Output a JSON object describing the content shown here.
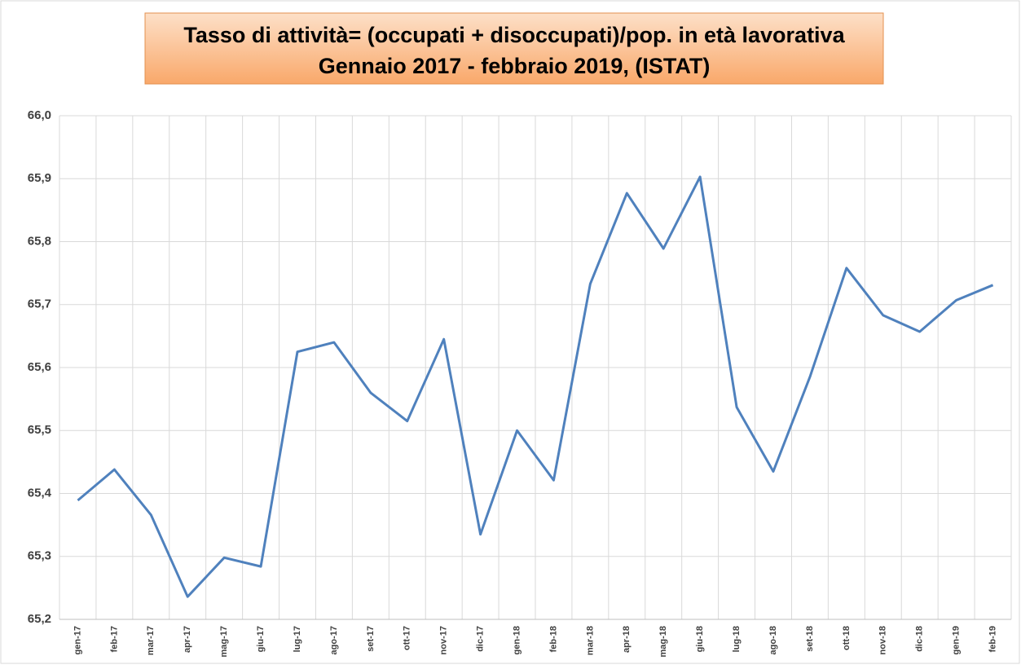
{
  "chart_data": {
    "type": "line",
    "title": [
      "Tasso di attività= (occupati + disoccupati)/pop. in età lavorativa",
      "Gennaio 2017 - febbraio 2019, (ISTAT)"
    ],
    "categories": [
      "gen-17",
      "feb-17",
      "mar-17",
      "apr-17",
      "mag-17",
      "giu-17",
      "lug-17",
      "ago-17",
      "set-17",
      "ott-17",
      "nov-17",
      "dic-17",
      "gen-18",
      "feb-18",
      "mar-18",
      "apr-18",
      "mag-18",
      "giu-18",
      "lug-18",
      "ago-18",
      "set-18",
      "ott-18",
      "nov-18",
      "dic-18",
      "gen-19",
      "feb-19"
    ],
    "series": [
      {
        "name": "Tasso di attività",
        "color": "#4f81bd",
        "values": [
          65.389,
          65.438,
          65.366,
          65.236,
          65.298,
          65.284,
          65.625,
          65.64,
          65.56,
          65.515,
          65.645,
          65.335,
          65.5,
          65.421,
          65.733,
          65.877,
          65.789,
          65.903,
          65.537,
          65.435,
          65.585,
          65.758,
          65.683,
          65.657,
          65.707,
          65.731
        ]
      }
    ],
    "ylim": [
      65.2,
      66.0
    ],
    "yticks": [
      {
        "value": 65.2,
        "label": "65,2"
      },
      {
        "value": 65.3,
        "label": "65,3"
      },
      {
        "value": 65.4,
        "label": "65,4"
      },
      {
        "value": 65.5,
        "label": "65,5"
      },
      {
        "value": 65.6,
        "label": "65,6"
      },
      {
        "value": 65.7,
        "label": "65,7"
      },
      {
        "value": 65.8,
        "label": "65,8"
      },
      {
        "value": 65.9,
        "label": "65,9"
      },
      {
        "value": 66.0,
        "label": "66,0"
      }
    ],
    "grid": true
  }
}
